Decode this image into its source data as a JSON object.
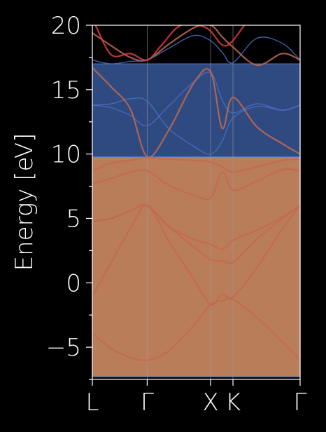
{
  "chart_data": {
    "type": "line",
    "ylabel": "Energy [eV]",
    "ylim": [
      -7.5,
      20
    ],
    "yticks": [
      -5,
      0,
      5,
      10,
      15,
      20
    ],
    "ytick_labels": [
      "−5",
      "0",
      "5",
      "10",
      "15",
      "20"
    ],
    "x_path": [
      {
        "label": "L",
        "x": 0.0
      },
      {
        "label": "Γ",
        "x": 0.866
      },
      {
        "label": "X",
        "x": 1.866
      },
      {
        "label": "K",
        "x": 2.22
      },
      {
        "label": "Γ",
        "x": 3.28
      }
    ],
    "background": "#000000",
    "regions": [
      {
        "name": "lower",
        "y_range": [
          -7.3,
          9.8
        ],
        "color": "#b97d5a"
      },
      {
        "name": "upper",
        "y_range": [
          9.8,
          17.0
        ],
        "color": "#2f4a80"
      }
    ],
    "series": [
      {
        "color": "#c4684f",
        "values": [
          [
            0,
            -3.9
          ],
          [
            0.3,
            -5.1
          ],
          [
            0.6,
            -5.8
          ],
          [
            0.866,
            -6.0
          ],
          [
            1.2,
            -5.3
          ],
          [
            1.6,
            -3.3
          ],
          [
            1.866,
            -1.7
          ],
          [
            2.05,
            -1.4
          ],
          [
            2.22,
            -1.3
          ],
          [
            2.6,
            -2.7
          ],
          [
            3.0,
            -4.6
          ],
          [
            3.28,
            -6.0
          ]
        ]
      },
      {
        "color": "#c4684f",
        "values": [
          [
            0,
            -1.0
          ],
          [
            0.3,
            1.6
          ],
          [
            0.6,
            4.2
          ],
          [
            0.866,
            6.0
          ],
          [
            1.2,
            3.3
          ],
          [
            1.6,
            0.3
          ],
          [
            1.866,
            -1.7
          ],
          [
            2.05,
            -0.9
          ],
          [
            2.22,
            -1.1
          ],
          [
            2.6,
            1.2
          ],
          [
            3.0,
            4.2
          ],
          [
            3.28,
            6.0
          ]
        ]
      },
      {
        "color": "#c4684f",
        "values": [
          [
            0,
            4.8
          ],
          [
            0.3,
            5.0
          ],
          [
            0.6,
            5.6
          ],
          [
            0.866,
            6.0
          ],
          [
            1.2,
            4.4
          ],
          [
            1.6,
            3.4
          ],
          [
            1.866,
            3.0
          ],
          [
            2.05,
            2.6
          ],
          [
            2.22,
            3.3
          ],
          [
            2.6,
            4.1
          ],
          [
            3.0,
            5.1
          ],
          [
            3.28,
            6.0
          ]
        ]
      },
      {
        "color": "#c4684f",
        "values": [
          [
            0,
            4.8
          ],
          [
            0.3,
            5.0
          ],
          [
            0.6,
            5.6
          ],
          [
            0.866,
            6.0
          ],
          [
            1.2,
            4.4
          ],
          [
            1.6,
            2.8
          ],
          [
            1.866,
            1.8
          ],
          [
            2.05,
            1.7
          ],
          [
            2.22,
            1.6
          ],
          [
            2.6,
            3.4
          ],
          [
            3.0,
            5.0
          ],
          [
            3.28,
            6.0
          ]
        ]
      },
      {
        "color": "#c4684f",
        "values": [
          [
            0,
            7.7
          ],
          [
            0.3,
            8.1
          ],
          [
            0.6,
            8.6
          ],
          [
            0.866,
            8.7
          ],
          [
            1.2,
            7.6
          ],
          [
            1.6,
            6.8
          ],
          [
            1.866,
            6.6
          ],
          [
            2.05,
            8.6
          ],
          [
            2.22,
            7.2
          ],
          [
            2.6,
            7.9
          ],
          [
            3.0,
            8.8
          ],
          [
            3.28,
            8.7
          ]
        ]
      },
      {
        "color": "#c4684f",
        "values": [
          [
            0,
            8.7
          ],
          [
            0.3,
            9.3
          ],
          [
            0.6,
            9.5
          ],
          [
            0.866,
            9.7
          ],
          [
            1.2,
            9.6
          ],
          [
            1.6,
            9.5
          ],
          [
            1.866,
            9.4
          ],
          [
            2.05,
            9.0
          ],
          [
            2.22,
            8.6
          ],
          [
            2.6,
            9.0
          ],
          [
            3.0,
            9.5
          ],
          [
            3.28,
            9.6
          ]
        ]
      },
      {
        "color": "#4a6fc4",
        "values": [
          [
            0,
            13.8
          ],
          [
            0.3,
            13.9
          ],
          [
            0.6,
            14.3
          ],
          [
            0.866,
            14.1
          ],
          [
            1.2,
            12.0
          ],
          [
            1.6,
            10.6
          ],
          [
            1.866,
            10.0
          ],
          [
            2.05,
            11.0
          ],
          [
            2.22,
            12.8
          ],
          [
            2.6,
            13.7
          ],
          [
            3.0,
            13.4
          ],
          [
            3.28,
            13.8
          ]
        ]
      },
      {
        "color": "#4a6fc4",
        "values": [
          [
            0,
            13.8
          ],
          [
            0.3,
            13.6
          ],
          [
            0.6,
            13.0
          ],
          [
            0.866,
            12.2
          ],
          [
            1.2,
            13.7
          ],
          [
            1.6,
            15.6
          ],
          [
            1.866,
            16.3
          ],
          [
            2.05,
            14.2
          ],
          [
            2.22,
            13.2
          ],
          [
            2.6,
            13.9
          ],
          [
            3.0,
            13.4
          ],
          [
            3.28,
            13.8
          ]
        ]
      },
      {
        "color": "#c4684f",
        "values": [
          [
            0,
            16.7
          ],
          [
            0.3,
            15.2
          ],
          [
            0.6,
            13.5
          ],
          [
            0.866,
            9.8
          ],
          [
            1.2,
            11.8
          ],
          [
            1.6,
            15.5
          ],
          [
            1.866,
            16.4
          ],
          [
            2.05,
            12.0
          ],
          [
            2.22,
            14.4
          ],
          [
            2.6,
            12.1
          ],
          [
            3.0,
            10.8
          ],
          [
            3.28,
            10.0
          ]
        ]
      },
      {
        "color": "#c4684f",
        "values": [
          [
            0,
            19.4
          ],
          [
            0.3,
            18.4
          ],
          [
            0.6,
            17.5
          ],
          [
            0.866,
            17.3
          ],
          [
            1.2,
            18.5
          ],
          [
            1.6,
            19.8
          ],
          [
            1.866,
            20.0
          ],
          [
            2.05,
            19.1
          ],
          [
            2.22,
            18.3
          ],
          [
            2.6,
            16.9
          ],
          [
            3.0,
            17.8
          ],
          [
            3.28,
            17.3
          ]
        ]
      },
      {
        "color": "#4a6fc4",
        "values": [
          [
            0,
            17.3
          ],
          [
            0.3,
            17.0
          ],
          [
            0.6,
            17.2
          ],
          [
            0.866,
            17.3
          ],
          [
            1.2,
            18.2
          ],
          [
            1.6,
            19.2
          ],
          [
            1.866,
            18.8
          ],
          [
            2.05,
            17.9
          ],
          [
            2.22,
            17.1
          ],
          [
            2.6,
            19.0
          ],
          [
            3.0,
            18.6
          ],
          [
            3.28,
            17.3
          ]
        ]
      },
      {
        "color": "#e33b3b",
        "values": [
          [
            0.05,
            20.0
          ],
          [
            0.3,
            17.7
          ],
          [
            0.6,
            17.8
          ],
          [
            0.866,
            17.3
          ],
          [
            1.1,
            18.5
          ],
          [
            1.4,
            20.0
          ],
          [
            1.8,
            19.8
          ],
          [
            2.1,
            18.4
          ],
          [
            2.4,
            20.0
          ]
        ]
      }
    ]
  }
}
